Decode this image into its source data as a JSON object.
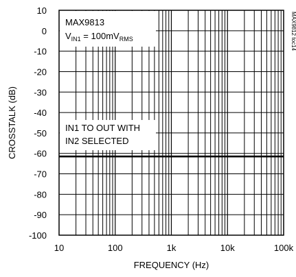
{
  "chart_data": {
    "type": "line",
    "xlabel": "FREQUENCY (Hz)",
    "ylabel": "CROSSTALK (dB)",
    "xscale": "log",
    "xlim": [
      10,
      100000
    ],
    "ylim": [
      -100,
      10
    ],
    "x_ticks": [
      10,
      100,
      1000,
      10000,
      100000
    ],
    "x_tick_labels": [
      "10",
      "100",
      "1k",
      "10k",
      "100k"
    ],
    "y_ticks": [
      10,
      0,
      -10,
      -20,
      -30,
      -40,
      -50,
      -60,
      -70,
      -80,
      -90,
      -100
    ],
    "grid": true,
    "annotations": {
      "part": "MAX9813",
      "vin_prefix": "V",
      "vin_sub": "IN1",
      "vin_value": " = 100mV",
      "vin_unit_sub": "RMS",
      "condition_line1": "IN1 TO OUT WITH",
      "condition_line2": "IN2 SELECTED",
      "side_tag": "MAX9812 toc14"
    },
    "series": [
      {
        "x": [
          10,
          20,
          50,
          100,
          200,
          500,
          1000,
          2000,
          5000,
          10000,
          20000,
          50000,
          100000
        ],
        "y": [
          -61.5,
          -61.5,
          -61.5,
          -61.5,
          -61.5,
          -61.5,
          -61.5,
          -61.5,
          -61.5,
          -61.5,
          -61.5,
          -61.5,
          -61.5
        ]
      }
    ]
  }
}
